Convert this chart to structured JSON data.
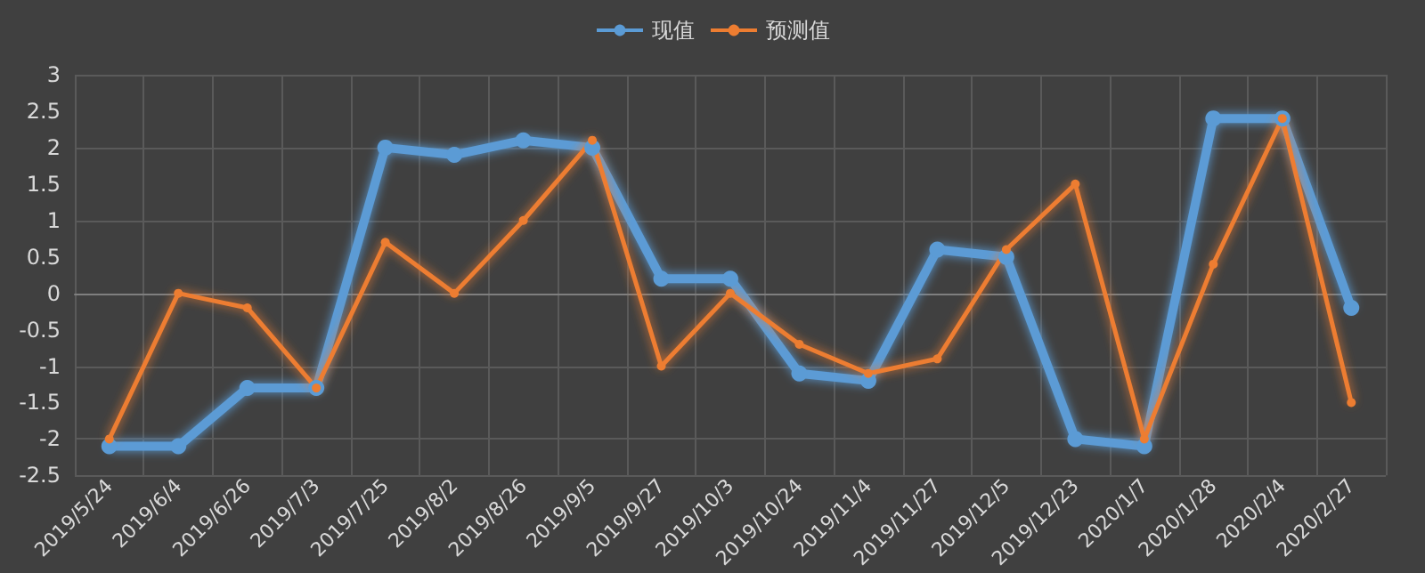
{
  "chart_data": {
    "type": "line",
    "categories": [
      "2019/5/24",
      "2019/6/4",
      "2019/6/26",
      "2019/7/3",
      "2019/7/25",
      "2019/8/2",
      "2019/8/26",
      "2019/9/5",
      "2019/9/27",
      "2019/10/3",
      "2019/10/24",
      "2019/11/4",
      "2019/11/27",
      "2019/12/5",
      "2019/12/23",
      "2020/1/7",
      "2020/1/28",
      "2020/2/4",
      "2020/2/27"
    ],
    "series": [
      {
        "name": "现值",
        "color": "#5b9bd5",
        "values": [
          -2.1,
          -2.1,
          -1.3,
          -1.3,
          2.0,
          1.9,
          2.1,
          2.0,
          0.2,
          0.2,
          -1.1,
          -1.2,
          0.6,
          0.5,
          -2.0,
          -2.1,
          2.4,
          2.4,
          -0.2
        ]
      },
      {
        "name": "预测值",
        "color": "#ed7d31",
        "values": [
          -2.0,
          0,
          -0.2,
          -1.3,
          0.7,
          0,
          1.0,
          2.1,
          -1.0,
          0,
          -0.7,
          -1.1,
          -0.9,
          0.6,
          1.5,
          -2.0,
          0.4,
          2.4,
          -1.5
        ]
      }
    ],
    "ylim": [
      -2.5,
      3
    ],
    "yticks": [
      -2.5,
      -2,
      -1.5,
      -1,
      -0.5,
      0,
      0.5,
      1,
      1.5,
      2,
      2.5,
      3
    ],
    "grid": true,
    "legend": "top",
    "marker": "circle",
    "line_style": "solid"
  }
}
